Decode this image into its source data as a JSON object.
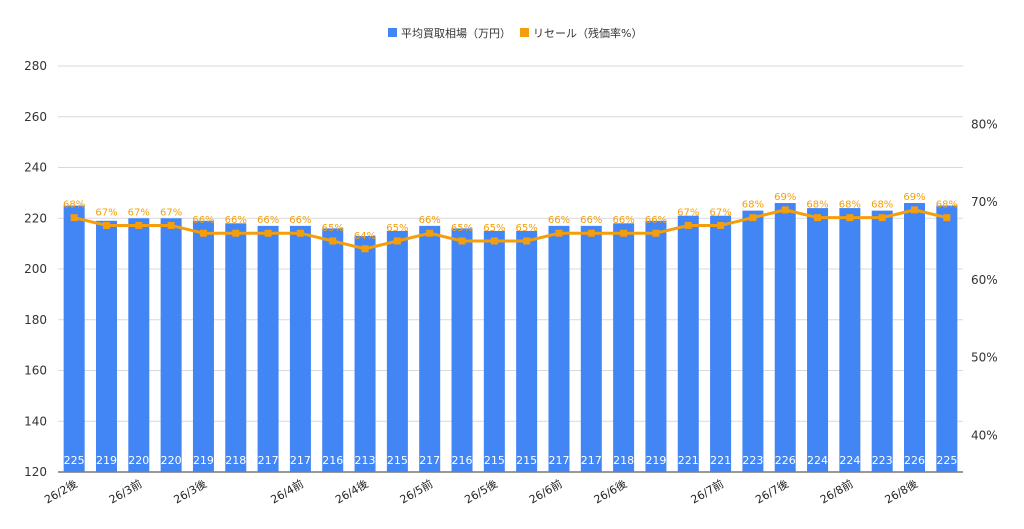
{
  "chart_data": {
    "type": "bar",
    "categories": [
      "26/2後",
      "",
      "26/3前",
      "",
      "26/3後",
      "",
      "",
      "26/4前",
      "",
      "26/4後",
      "",
      "26/5前",
      "",
      "26/5後",
      "",
      "26/6前",
      "",
      "26/6後",
      "",
      "",
      "26/7前",
      "",
      "26/7後",
      "",
      "26/8前",
      "",
      "26/8後",
      ""
    ],
    "series": [
      {
        "name": "平均買取相場（万円）",
        "type": "bar",
        "axis": "left",
        "color": "#4285f4",
        "values": [
          225,
          219,
          220,
          220,
          219,
          218,
          217,
          217,
          216,
          213,
          215,
          217,
          216,
          215,
          215,
          217,
          217,
          218,
          219,
          221,
          221,
          223,
          226,
          224,
          224,
          223,
          226,
          225
        ],
        "labels": [
          "225",
          "219",
          "220",
          "220",
          "219",
          "218",
          "217",
          "217",
          "216",
          "213",
          "215",
          "217",
          "216",
          "215",
          "215",
          "217",
          "217",
          "218",
          "219",
          "221",
          "221",
          "223",
          "226",
          "224",
          "224",
          "223",
          "226",
          "225"
        ]
      },
      {
        "name": "リセール（残価率%）",
        "type": "line",
        "axis": "right",
        "color": "#f59e0b",
        "values": [
          68,
          67,
          67,
          67,
          66,
          66,
          66,
          66,
          65,
          64,
          65,
          66,
          65,
          65,
          65,
          66,
          66,
          66,
          66,
          67,
          67,
          68,
          69,
          68,
          68,
          68,
          69,
          68
        ],
        "labels": [
          "68%",
          "67%",
          "67%",
          "67%",
          "66%",
          "66%",
          "66%",
          "66%",
          "65%",
          "64%",
          "65%",
          "66%",
          "65%",
          "65%",
          "65%",
          "66%",
          "66%",
          "66%",
          "66%",
          "67%",
          "67%",
          "68%",
          "69%",
          "68%",
          "68%",
          "68%",
          "69%",
          "68%"
        ]
      }
    ],
    "y_left": {
      "min": 120,
      "max": 280,
      "ticks": [
        "120",
        "140",
        "160",
        "180",
        "200",
        "220",
        "240",
        "260",
        "280"
      ]
    },
    "y_right": {
      "min": 35.3,
      "max": 87.5,
      "ticks": [
        "40%",
        "50%",
        "60%",
        "70%",
        "80%"
      ],
      "tick_values": [
        40,
        50,
        60,
        70,
        80
      ]
    },
    "grid": true,
    "legend_position": "top"
  }
}
